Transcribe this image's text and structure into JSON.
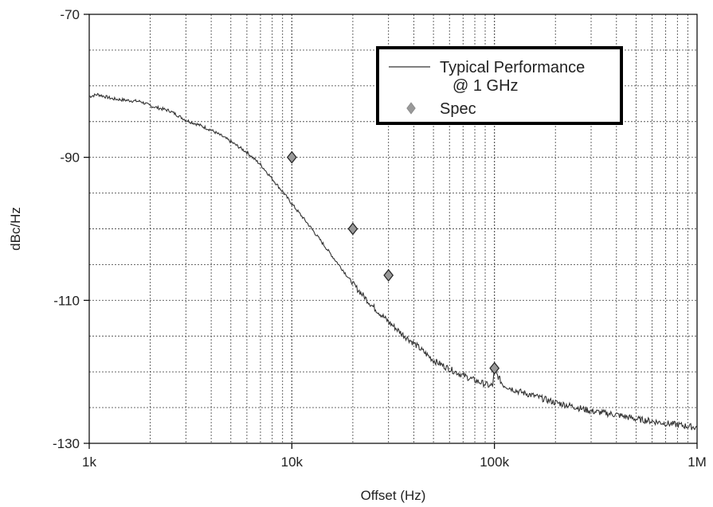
{
  "chart_data": {
    "type": "line",
    "title": "",
    "xlabel": "Offset (Hz)",
    "ylabel": "dBc/Hz",
    "x_scale": "log",
    "xlim": [
      1000,
      1000000
    ],
    "ylim": [
      -130,
      -70
    ],
    "x_ticks": [
      {
        "value": 1000,
        "label": "1k"
      },
      {
        "value": 10000,
        "label": "10k"
      },
      {
        "value": 100000,
        "label": "100k"
      },
      {
        "value": 1000000,
        "label": "1M"
      }
    ],
    "y_ticks": [
      {
        "value": -70,
        "label": "-70"
      },
      {
        "value": -90,
        "label": "-90"
      },
      {
        "value": -110,
        "label": "-110"
      },
      {
        "value": -130,
        "label": "-130"
      }
    ],
    "grid": true,
    "grid_style": "dotted",
    "legend_position": "top-right",
    "series": [
      {
        "name": "Typical Performance\n@ 1 GHz",
        "type": "line",
        "color": "#333333",
        "x": [
          1000,
          1100,
          1300,
          1500,
          1800,
          2000,
          2500,
          3000,
          3500,
          4000,
          4500,
          5000,
          6000,
          7000,
          8000,
          9000,
          10000,
          12000,
          14000,
          16000,
          18000,
          20000,
          25000,
          30000,
          35000,
          40000,
          50000,
          60000,
          70000,
          80000,
          90000,
          95000,
          98000,
          100000,
          110000,
          130000,
          150000,
          200000,
          250000,
          300000,
          400000,
          500000,
          600000,
          700000,
          800000,
          1000000
        ],
        "y": [
          -81.5,
          -81.2,
          -81.8,
          -82.0,
          -82.2,
          -82.8,
          -83.5,
          -84.8,
          -85.5,
          -86.2,
          -87.0,
          -87.8,
          -89.3,
          -91.0,
          -93.0,
          -94.8,
          -96.5,
          -99.3,
          -101.8,
          -104.0,
          -105.9,
          -107.7,
          -110.8,
          -113.0,
          -114.7,
          -116.0,
          -118.4,
          -119.6,
          -120.5,
          -121.2,
          -121.7,
          -122.0,
          -121.8,
          -119.8,
          -121.8,
          -122.7,
          -123.2,
          -124.3,
          -124.9,
          -125.5,
          -126.0,
          -126.6,
          -126.9,
          -127.2,
          -127.4,
          -127.8
        ]
      },
      {
        "name": "Spec",
        "type": "scatter",
        "marker": "diamond",
        "color": "#999999",
        "x": [
          10000,
          20000,
          30000,
          100000
        ],
        "y": [
          -90,
          -100,
          -106.5,
          -119.5
        ]
      }
    ]
  }
}
